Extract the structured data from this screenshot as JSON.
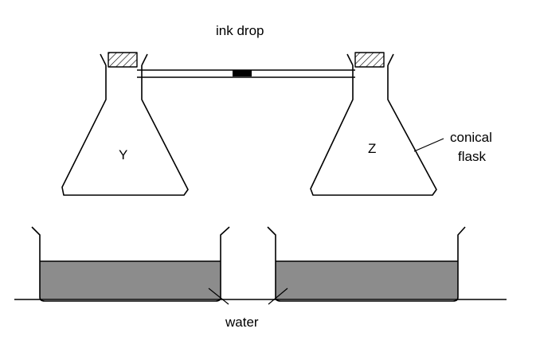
{
  "labels": {
    "ink_drop": "ink drop",
    "flask_left": "Y",
    "flask_right": "Z",
    "conical_line1": "conical",
    "conical_line2": "flask",
    "water": "water"
  },
  "colors": {
    "line": "#000000",
    "water": "#8c8c8c",
    "ink": "#000000",
    "background": "#ffffff"
  }
}
